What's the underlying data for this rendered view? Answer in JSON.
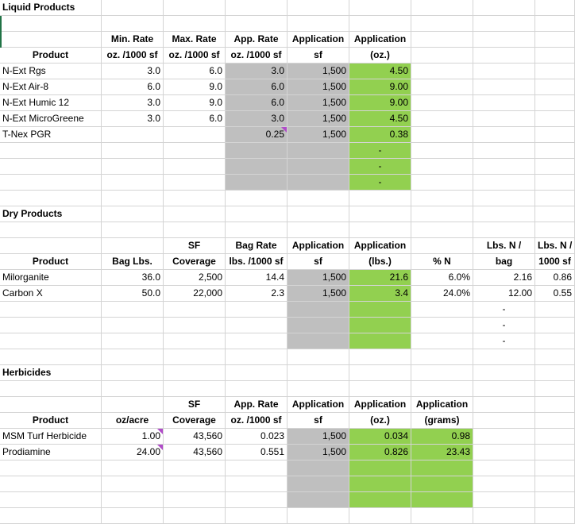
{
  "liquid": {
    "title": "Liquid Products",
    "headers": {
      "product": "Product",
      "min_1": "Min. Rate",
      "min_2": "oz. /1000 sf",
      "max_1": "Max. Rate",
      "max_2": "oz. /1000 sf",
      "app_1": "App. Rate",
      "app_2": "oz. /1000 sf",
      "appsf_1": "Application",
      "appsf_2": "sf",
      "appoz_1": "Application",
      "appoz_2": "(oz.)"
    },
    "rows": [
      {
        "product": "N-Ext Rgs",
        "min": "3.0",
        "max": "6.0",
        "app_rate": "3.0",
        "sf": "1,500",
        "application": "4.50"
      },
      {
        "product": "N-Ext Air-8",
        "min": "6.0",
        "max": "9.0",
        "app_rate": "6.0",
        "sf": "1,500",
        "application": "9.00"
      },
      {
        "product": "N-Ext Humic 12",
        "min": "3.0",
        "max": "9.0",
        "app_rate": "6.0",
        "sf": "1,500",
        "application": "9.00"
      },
      {
        "product": "N-Ext MicroGreene",
        "min": "3.0",
        "max": "6.0",
        "app_rate": "3.0",
        "sf": "1,500",
        "application": "4.50"
      },
      {
        "product": "T-Nex PGR",
        "min": "",
        "max": "",
        "app_rate": "0.25",
        "sf": "1,500",
        "application": "0.38"
      },
      {
        "product": "",
        "min": "",
        "max": "",
        "app_rate": "",
        "sf": "",
        "application": "-"
      },
      {
        "product": "",
        "min": "",
        "max": "",
        "app_rate": "",
        "sf": "",
        "application": "-"
      },
      {
        "product": "",
        "min": "",
        "max": "",
        "app_rate": "",
        "sf": "",
        "application": "-"
      }
    ]
  },
  "dry": {
    "title": "Dry Products",
    "headers": {
      "product": "Product",
      "bag_lbs": "Bag Lbs.",
      "sf_1": "SF",
      "sf_2": "Coverage",
      "bag_rate_1": "Bag Rate",
      "bag_rate_2": "lbs. /1000 sf",
      "appsf_1": "Application",
      "appsf_2": "sf",
      "applbs_1": "Application",
      "applbs_2": "(lbs.)",
      "pct_n": "% N",
      "lbs_bag_1": "Lbs. N /",
      "lbs_bag_2": "bag",
      "lbs_1000_1": "Lbs. N /",
      "lbs_1000_2": "1000 sf"
    },
    "rows": [
      {
        "product": "Milorganite",
        "bag_lbs": "36.0",
        "coverage": "2,500",
        "bag_rate": "14.4",
        "sf": "1,500",
        "application": "21.6",
        "pct_n": "6.0%",
        "lbs_bag": "2.16",
        "lbs_1000": "0.86"
      },
      {
        "product": "Carbon X",
        "bag_lbs": "50.0",
        "coverage": "22,000",
        "bag_rate": "2.3",
        "sf": "1,500",
        "application": "3.4",
        "pct_n": "24.0%",
        "lbs_bag": "12.00",
        "lbs_1000": "0.55"
      },
      {
        "product": "",
        "bag_lbs": "",
        "coverage": "",
        "bag_rate": "",
        "sf": "",
        "application": "",
        "pct_n": "",
        "lbs_bag": "-",
        "lbs_1000": ""
      },
      {
        "product": "",
        "bag_lbs": "",
        "coverage": "",
        "bag_rate": "",
        "sf": "",
        "application": "",
        "pct_n": "",
        "lbs_bag": "-",
        "lbs_1000": ""
      },
      {
        "product": "",
        "bag_lbs": "",
        "coverage": "",
        "bag_rate": "",
        "sf": "",
        "application": "",
        "pct_n": "",
        "lbs_bag": "-",
        "lbs_1000": ""
      }
    ]
  },
  "herb": {
    "title": "Herbicides",
    "headers": {
      "product": "Product",
      "oz_acre": "oz/acre",
      "sf_1": "SF",
      "sf_2": "Coverage",
      "app_1": "App. Rate",
      "app_2": "oz. /1000 sf",
      "appsf_1": "Application",
      "appsf_2": "sf",
      "appoz_1": "Application",
      "appoz_2": "(oz.)",
      "appg_1": "Application",
      "appg_2": "(grams)"
    },
    "rows": [
      {
        "product": "MSM Turf Herbicide",
        "oz_acre": "1.00",
        "coverage": "43,560",
        "app_rate": "0.023",
        "sf": "1,500",
        "application_oz": "0.034",
        "application_g": "0.98"
      },
      {
        "product": "Prodiamine",
        "oz_acre": "24.00",
        "coverage": "43,560",
        "app_rate": "0.551",
        "sf": "1,500",
        "application_oz": "0.826",
        "application_g": "23.43"
      },
      {
        "product": "",
        "oz_acre": "",
        "coverage": "",
        "app_rate": "",
        "sf": "",
        "application_oz": "",
        "application_g": ""
      },
      {
        "product": "",
        "oz_acre": "",
        "coverage": "",
        "app_rate": "",
        "sf": "",
        "application_oz": "",
        "application_g": ""
      },
      {
        "product": "",
        "oz_acre": "",
        "coverage": "",
        "app_rate": "",
        "sf": "",
        "application_oz": "",
        "application_g": ""
      }
    ]
  },
  "colors": {
    "gray_fill": "#bfbfbf",
    "green_fill": "#92d050",
    "gridline": "#d4d4d4",
    "comment_marker": "#b04cc8"
  }
}
